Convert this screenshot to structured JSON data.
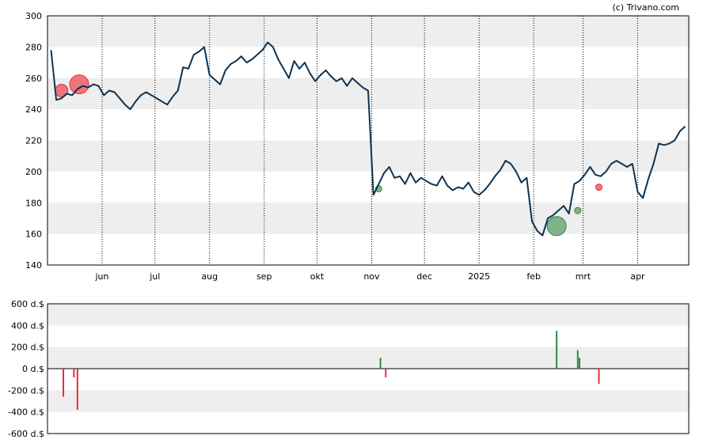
{
  "credit": "(c) Trivano.com",
  "colors": {
    "price_line": "#0d3352",
    "band": "#eeeeee",
    "buy": "#2e8b3e",
    "sell": "#e0303a",
    "buy_marker": "#5aa06a",
    "sell_marker": "#ee4b55"
  },
  "chart_data": [
    {
      "type": "line",
      "title": "",
      "x_tick_labels": [
        "jun",
        "jul",
        "aug",
        "sep",
        "okt",
        "nov",
        "dec",
        "2025",
        "feb",
        "mrt",
        "apr"
      ],
      "y_tick_labels": [
        "140",
        "160",
        "180",
        "200",
        "220",
        "240",
        "260",
        "280",
        "300"
      ],
      "ylim": [
        140,
        300
      ],
      "grid": "alternating horizontal bands, dotted vertical lines at month ticks",
      "x": [
        "2024-05-03",
        "2024-05-06",
        "2024-05-09",
        "2024-05-12",
        "2024-05-15",
        "2024-05-18",
        "2024-05-21",
        "2024-05-24",
        "2024-05-27",
        "2024-05-30",
        "2024-06-02",
        "2024-06-05",
        "2024-06-08",
        "2024-06-11",
        "2024-06-14",
        "2024-06-17",
        "2024-06-20",
        "2024-06-23",
        "2024-06-26",
        "2024-06-29",
        "2024-07-02",
        "2024-07-05",
        "2024-07-08",
        "2024-07-11",
        "2024-07-14",
        "2024-07-17",
        "2024-07-20",
        "2024-07-23",
        "2024-07-26",
        "2024-07-29",
        "2024-08-01",
        "2024-08-04",
        "2024-08-07",
        "2024-08-10",
        "2024-08-13",
        "2024-08-16",
        "2024-08-19",
        "2024-08-22",
        "2024-08-25",
        "2024-08-28",
        "2024-08-31",
        "2024-09-03",
        "2024-09-06",
        "2024-09-09",
        "2024-09-12",
        "2024-09-15",
        "2024-09-18",
        "2024-09-21",
        "2024-09-24",
        "2024-09-27",
        "2024-09-30",
        "2024-10-03",
        "2024-10-06",
        "2024-10-09",
        "2024-10-12",
        "2024-10-15",
        "2024-10-18",
        "2024-10-21",
        "2024-10-24",
        "2024-10-27",
        "2024-10-30",
        "2024-11-02",
        "2024-11-05",
        "2024-11-08",
        "2024-11-11",
        "2024-11-14",
        "2024-11-17",
        "2024-11-20",
        "2024-11-23",
        "2024-11-26",
        "2024-11-29",
        "2024-12-02",
        "2024-12-05",
        "2024-12-08",
        "2024-12-11",
        "2024-12-14",
        "2024-12-17",
        "2024-12-20",
        "2024-12-23",
        "2024-12-26",
        "2024-12-29",
        "2025-01-01",
        "2025-01-04",
        "2025-01-07",
        "2025-01-10",
        "2025-01-13",
        "2025-01-16",
        "2025-01-19",
        "2025-01-22",
        "2025-01-25",
        "2025-01-28",
        "2025-01-31",
        "2025-02-03",
        "2025-02-06",
        "2025-02-09",
        "2025-02-12",
        "2025-02-15",
        "2025-02-18",
        "2025-02-21",
        "2025-02-24",
        "2025-02-27",
        "2025-03-02",
        "2025-03-05",
        "2025-03-08",
        "2025-03-11",
        "2025-03-14",
        "2025-03-17",
        "2025-03-20",
        "2025-03-23",
        "2025-03-26",
        "2025-03-29",
        "2025-04-01",
        "2025-04-04",
        "2025-04-07",
        "2025-04-10",
        "2025-04-13",
        "2025-04-16",
        "2025-04-19",
        "2025-04-22",
        "2025-04-25",
        "2025-04-28"
      ],
      "y": [
        278,
        246,
        247,
        250,
        249,
        253,
        255,
        254,
        256,
        255,
        249,
        252,
        251,
        247,
        243,
        240,
        245,
        249,
        251,
        249,
        247,
        245,
        243,
        248,
        252,
        267,
        266,
        275,
        277,
        280,
        262,
        259,
        256,
        265,
        269,
        271,
        274,
        270,
        272,
        275,
        278,
        283,
        280,
        272,
        266,
        260,
        271,
        266,
        270,
        263,
        258,
        262,
        265,
        261,
        258,
        260,
        255,
        260,
        257,
        254,
        252,
        185,
        192,
        199,
        203,
        196,
        197,
        192,
        199,
        193,
        196,
        194,
        192,
        191,
        197,
        191,
        188,
        190,
        189,
        193,
        187,
        185,
        188,
        192,
        197,
        201,
        207,
        205,
        200,
        193,
        196,
        168,
        162,
        159,
        170,
        172,
        175,
        178,
        173,
        192,
        194,
        198,
        203,
        198,
        197,
        200,
        205,
        207,
        205,
        203,
        205,
        187,
        183,
        195,
        205,
        218,
        217,
        218,
        220,
        226,
        229
      ],
      "signals": [
        {
          "date": "2024-05-09",
          "price": 252,
          "type": "sell",
          "size": "medium"
        },
        {
          "date": "2024-05-19",
          "price": 256,
          "type": "sell",
          "size": "large"
        },
        {
          "date": "2024-11-05",
          "price": 189,
          "type": "buy",
          "size": "small"
        },
        {
          "date": "2025-02-14",
          "price": 165,
          "type": "buy",
          "size": "large"
        },
        {
          "date": "2025-02-26",
          "price": 175,
          "type": "buy",
          "size": "small"
        },
        {
          "date": "2025-03-10",
          "price": 190,
          "type": "sell",
          "size": "small"
        }
      ]
    },
    {
      "type": "bar",
      "title": "",
      "y_tick_labels": [
        "600 d.$",
        "400 d.$",
        "200 d.$",
        "0 d.$",
        "-200 d.$",
        "-400 d.$",
        "-600 d.$"
      ],
      "ylim": [
        -600,
        600
      ],
      "unit": "d.$",
      "x": [
        "2024-05-10",
        "2024-05-16",
        "2024-05-18",
        "2024-11-06",
        "2024-11-09",
        "2025-02-14",
        "2025-02-26",
        "2025-02-27",
        "2025-03-10"
      ],
      "values": [
        -260,
        -80,
        -380,
        100,
        -80,
        350,
        170,
        100,
        -140
      ]
    }
  ]
}
